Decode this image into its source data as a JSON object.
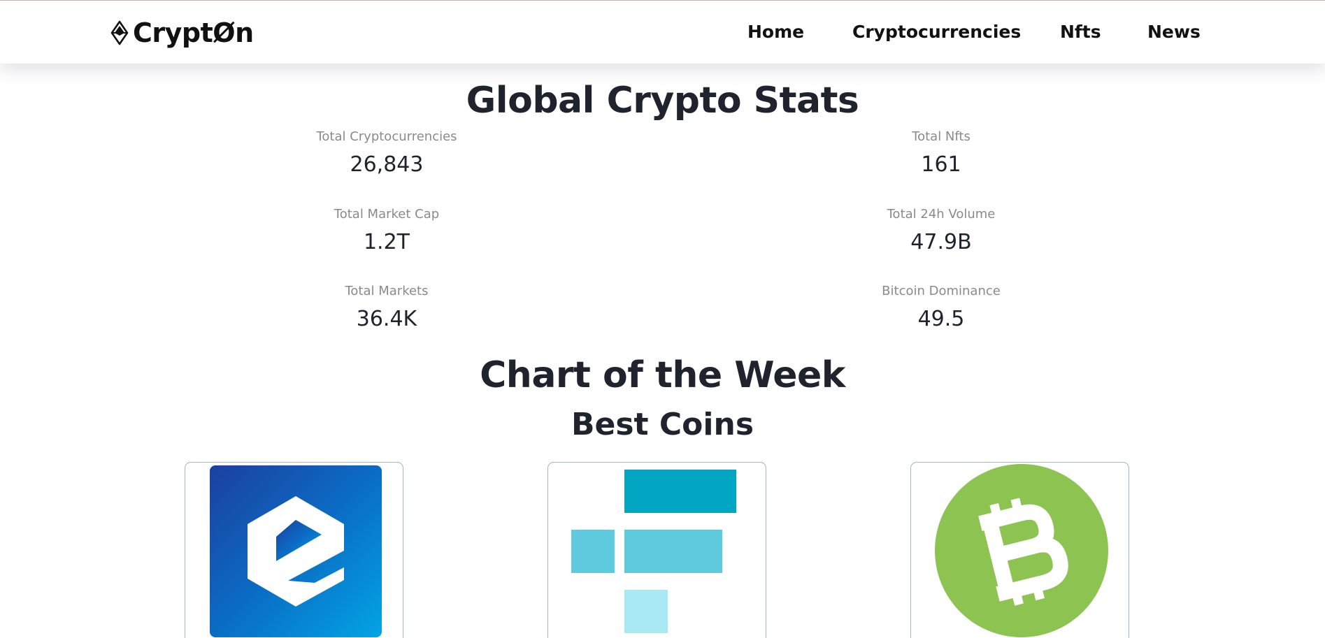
{
  "header": {
    "logo_text": "CryptØn",
    "nav": [
      {
        "label": "Home"
      },
      {
        "label": "Cryptocurrencies"
      },
      {
        "label": "Nfts"
      },
      {
        "label": "News"
      }
    ]
  },
  "global_stats": {
    "title": "Global Crypto Stats",
    "items": [
      {
        "label": "Total Cryptocurrencies",
        "value": "26,843"
      },
      {
        "label": "Total Nfts",
        "value": "161"
      },
      {
        "label": "Total Market Cap",
        "value": "1.2T"
      },
      {
        "label": "Total 24h Volume",
        "value": "47.9B"
      },
      {
        "label": "Total Markets",
        "value": "36.4K"
      },
      {
        "label": "Bitcoin Dominance",
        "value": "49.5"
      }
    ]
  },
  "chart_of_week": {
    "title": "Chart of the Week",
    "subtitle": "Best Coins",
    "coins": [
      {
        "icon": "ecoin-logo-icon",
        "color": "#0a7ad1"
      },
      {
        "icon": "ftx-token-logo-icon",
        "color": "#02a6c2"
      },
      {
        "icon": "bitcoin-cash-logo-icon",
        "color": "#8dc351"
      }
    ]
  }
}
